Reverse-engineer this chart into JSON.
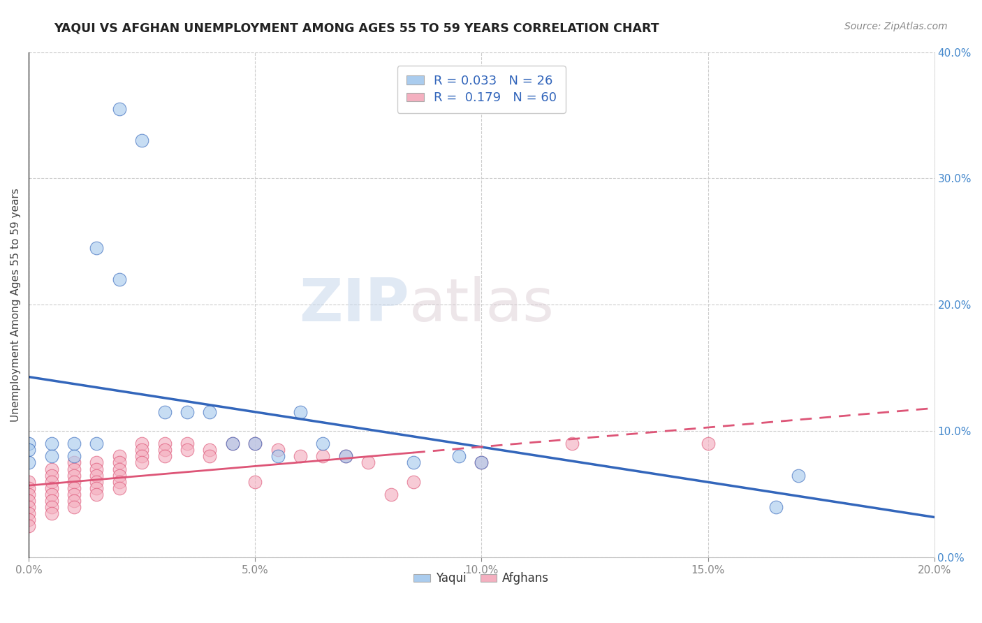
{
  "title": "YAQUI VS AFGHAN UNEMPLOYMENT AMONG AGES 55 TO 59 YEARS CORRELATION CHART",
  "source_text": "Source: ZipAtlas.com",
  "ylabel": "Unemployment Among Ages 55 to 59 years",
  "xlim": [
    0.0,
    0.2
  ],
  "ylim": [
    0.0,
    0.4
  ],
  "xticks": [
    0.0,
    0.05,
    0.1,
    0.15,
    0.2
  ],
  "xtick_labels": [
    "0.0%",
    "5.0%",
    "10.0%",
    "15.0%",
    "20.0%"
  ],
  "yticks": [
    0.0,
    0.1,
    0.2,
    0.3,
    0.4
  ],
  "ytick_labels": [
    "0.0%",
    "10.0%",
    "20.0%",
    "30.0%",
    "40.0%"
  ],
  "background_color": "#ffffff",
  "plot_bg_color": "#ffffff",
  "grid_color": "#cccccc",
  "yaqui_color": "#aaccee",
  "afghan_color": "#f4b0c0",
  "yaqui_R": 0.033,
  "yaqui_N": 26,
  "afghan_R": 0.179,
  "afghan_N": 60,
  "trend_blue_color": "#3366bb",
  "trend_pink_color": "#dd5577",
  "watermark_zip": "ZIP",
  "watermark_atlas": "atlas",
  "yaqui_scatter": [
    [
      0.0,
      0.09
    ],
    [
      0.0,
      0.085
    ],
    [
      0.0,
      0.075
    ],
    [
      0.005,
      0.09
    ],
    [
      0.005,
      0.08
    ],
    [
      0.01,
      0.09
    ],
    [
      0.01,
      0.08
    ],
    [
      0.015,
      0.09
    ],
    [
      0.02,
      0.355
    ],
    [
      0.025,
      0.33
    ],
    [
      0.015,
      0.245
    ],
    [
      0.02,
      0.22
    ],
    [
      0.03,
      0.115
    ],
    [
      0.035,
      0.115
    ],
    [
      0.04,
      0.115
    ],
    [
      0.045,
      0.09
    ],
    [
      0.05,
      0.09
    ],
    [
      0.055,
      0.08
    ],
    [
      0.06,
      0.115
    ],
    [
      0.065,
      0.09
    ],
    [
      0.07,
      0.08
    ],
    [
      0.085,
      0.075
    ],
    [
      0.095,
      0.08
    ],
    [
      0.1,
      0.075
    ],
    [
      0.165,
      0.04
    ],
    [
      0.17,
      0.065
    ]
  ],
  "afghan_scatter": [
    [
      0.0,
      0.06
    ],
    [
      0.0,
      0.055
    ],
    [
      0.0,
      0.05
    ],
    [
      0.0,
      0.045
    ],
    [
      0.0,
      0.04
    ],
    [
      0.0,
      0.035
    ],
    [
      0.0,
      0.03
    ],
    [
      0.0,
      0.025
    ],
    [
      0.005,
      0.07
    ],
    [
      0.005,
      0.065
    ],
    [
      0.005,
      0.06
    ],
    [
      0.005,
      0.055
    ],
    [
      0.005,
      0.05
    ],
    [
      0.005,
      0.045
    ],
    [
      0.005,
      0.04
    ],
    [
      0.005,
      0.035
    ],
    [
      0.01,
      0.075
    ],
    [
      0.01,
      0.07
    ],
    [
      0.01,
      0.065
    ],
    [
      0.01,
      0.06
    ],
    [
      0.01,
      0.055
    ],
    [
      0.01,
      0.05
    ],
    [
      0.01,
      0.045
    ],
    [
      0.01,
      0.04
    ],
    [
      0.015,
      0.075
    ],
    [
      0.015,
      0.07
    ],
    [
      0.015,
      0.065
    ],
    [
      0.015,
      0.06
    ],
    [
      0.015,
      0.055
    ],
    [
      0.015,
      0.05
    ],
    [
      0.02,
      0.08
    ],
    [
      0.02,
      0.075
    ],
    [
      0.02,
      0.07
    ],
    [
      0.02,
      0.065
    ],
    [
      0.02,
      0.06
    ],
    [
      0.02,
      0.055
    ],
    [
      0.025,
      0.09
    ],
    [
      0.025,
      0.085
    ],
    [
      0.025,
      0.08
    ],
    [
      0.025,
      0.075
    ],
    [
      0.03,
      0.09
    ],
    [
      0.03,
      0.085
    ],
    [
      0.03,
      0.08
    ],
    [
      0.035,
      0.09
    ],
    [
      0.035,
      0.085
    ],
    [
      0.04,
      0.085
    ],
    [
      0.04,
      0.08
    ],
    [
      0.045,
      0.09
    ],
    [
      0.05,
      0.09
    ],
    [
      0.05,
      0.06
    ],
    [
      0.055,
      0.085
    ],
    [
      0.06,
      0.08
    ],
    [
      0.065,
      0.08
    ],
    [
      0.07,
      0.08
    ],
    [
      0.075,
      0.075
    ],
    [
      0.08,
      0.05
    ],
    [
      0.085,
      0.06
    ],
    [
      0.1,
      0.075
    ],
    [
      0.12,
      0.09
    ],
    [
      0.15,
      0.09
    ]
  ]
}
